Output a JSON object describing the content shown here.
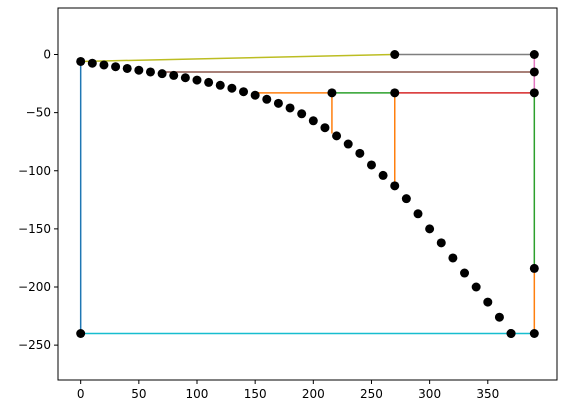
{
  "chart_data": {
    "type": "line",
    "xlim": [
      -19.5,
      409.5
    ],
    "ylim": [
      -280,
      40
    ],
    "xticks": [
      0,
      50,
      100,
      150,
      200,
      250,
      300,
      350
    ],
    "yticks": [
      0,
      {
        "value": -50,
        "label": "−50"
      },
      {
        "value": -100,
        "label": "−100"
      },
      {
        "value": -150,
        "label": "−150"
      },
      {
        "value": -200,
        "label": "−200"
      },
      {
        "value": -250,
        "label": "−250"
      }
    ],
    "series": [
      {
        "color": "#1f77b4",
        "x": [
          0,
          0
        ],
        "values": [
          -6,
          -240
        ]
      },
      {
        "color": "#17becf",
        "x": [
          0,
          390
        ],
        "values": [
          -240,
          -240
        ]
      },
      {
        "color": "#bcbd22",
        "x": [
          0,
          270
        ],
        "values": [
          -6,
          0
        ]
      },
      {
        "color": "#7f7f7f",
        "x": [
          270,
          390
        ],
        "values": [
          0,
          0
        ]
      },
      {
        "color": "#e377c2",
        "x": [
          390,
          390
        ],
        "values": [
          0,
          -33
        ]
      },
      {
        "color": "#8c564b",
        "x": [
          70,
          390
        ],
        "values": [
          -15,
          -15
        ]
      },
      {
        "color": "#ff7f0e",
        "x": [
          150,
          216,
          216
        ],
        "values": [
          -33,
          -33,
          -68
        ]
      },
      {
        "color": "#2ca02c",
        "x": [
          216,
          270
        ],
        "values": [
          -33,
          -33
        ]
      },
      {
        "color": "#d62728",
        "x": [
          270,
          390
        ],
        "values": [
          -33,
          -33
        ]
      },
      {
        "color": "#ff7f0e",
        "x": [
          270,
          270
        ],
        "values": [
          -33,
          -113
        ]
      },
      {
        "color": "#2ca02c",
        "x": [
          390,
          390
        ],
        "values": [
          -33,
          -184
        ]
      },
      {
        "color": "#ff7f0e",
        "x": [
          390,
          390
        ],
        "values": [
          -184,
          -240
        ]
      },
      {
        "color": "#000000",
        "marker": true,
        "x": [
          270,
          390,
          390,
          216,
          270,
          390,
          390,
          0,
          390,
          370
        ],
        "values": [
          0,
          0,
          -15,
          -33,
          -33,
          -33,
          -184,
          -240,
          -240,
          -240
        ]
      },
      {
        "color": "#000000",
        "marker": true,
        "x": [
          0,
          10,
          20,
          30,
          40,
          50,
          60,
          70,
          80,
          90,
          100,
          110,
          120,
          130,
          140,
          150,
          160,
          170,
          180,
          190,
          200,
          210,
          220,
          230,
          240,
          250,
          260,
          270,
          280,
          290,
          300,
          310,
          320,
          330,
          340,
          350,
          360,
          370
        ],
        "values": [
          -6,
          -7.5,
          -9,
          -10.5,
          -12,
          -13.5,
          -15,
          -16.5,
          -18,
          -20,
          -22,
          -24,
          -26.5,
          -29,
          -32,
          -35,
          -38.5,
          -42,
          -46,
          -51,
          -57,
          -63,
          -70,
          -77,
          -85,
          -95,
          -104,
          -113,
          -124,
          -137,
          -150,
          -162,
          -175,
          -188,
          -200,
          -213,
          -226,
          -240
        ]
      }
    ]
  }
}
